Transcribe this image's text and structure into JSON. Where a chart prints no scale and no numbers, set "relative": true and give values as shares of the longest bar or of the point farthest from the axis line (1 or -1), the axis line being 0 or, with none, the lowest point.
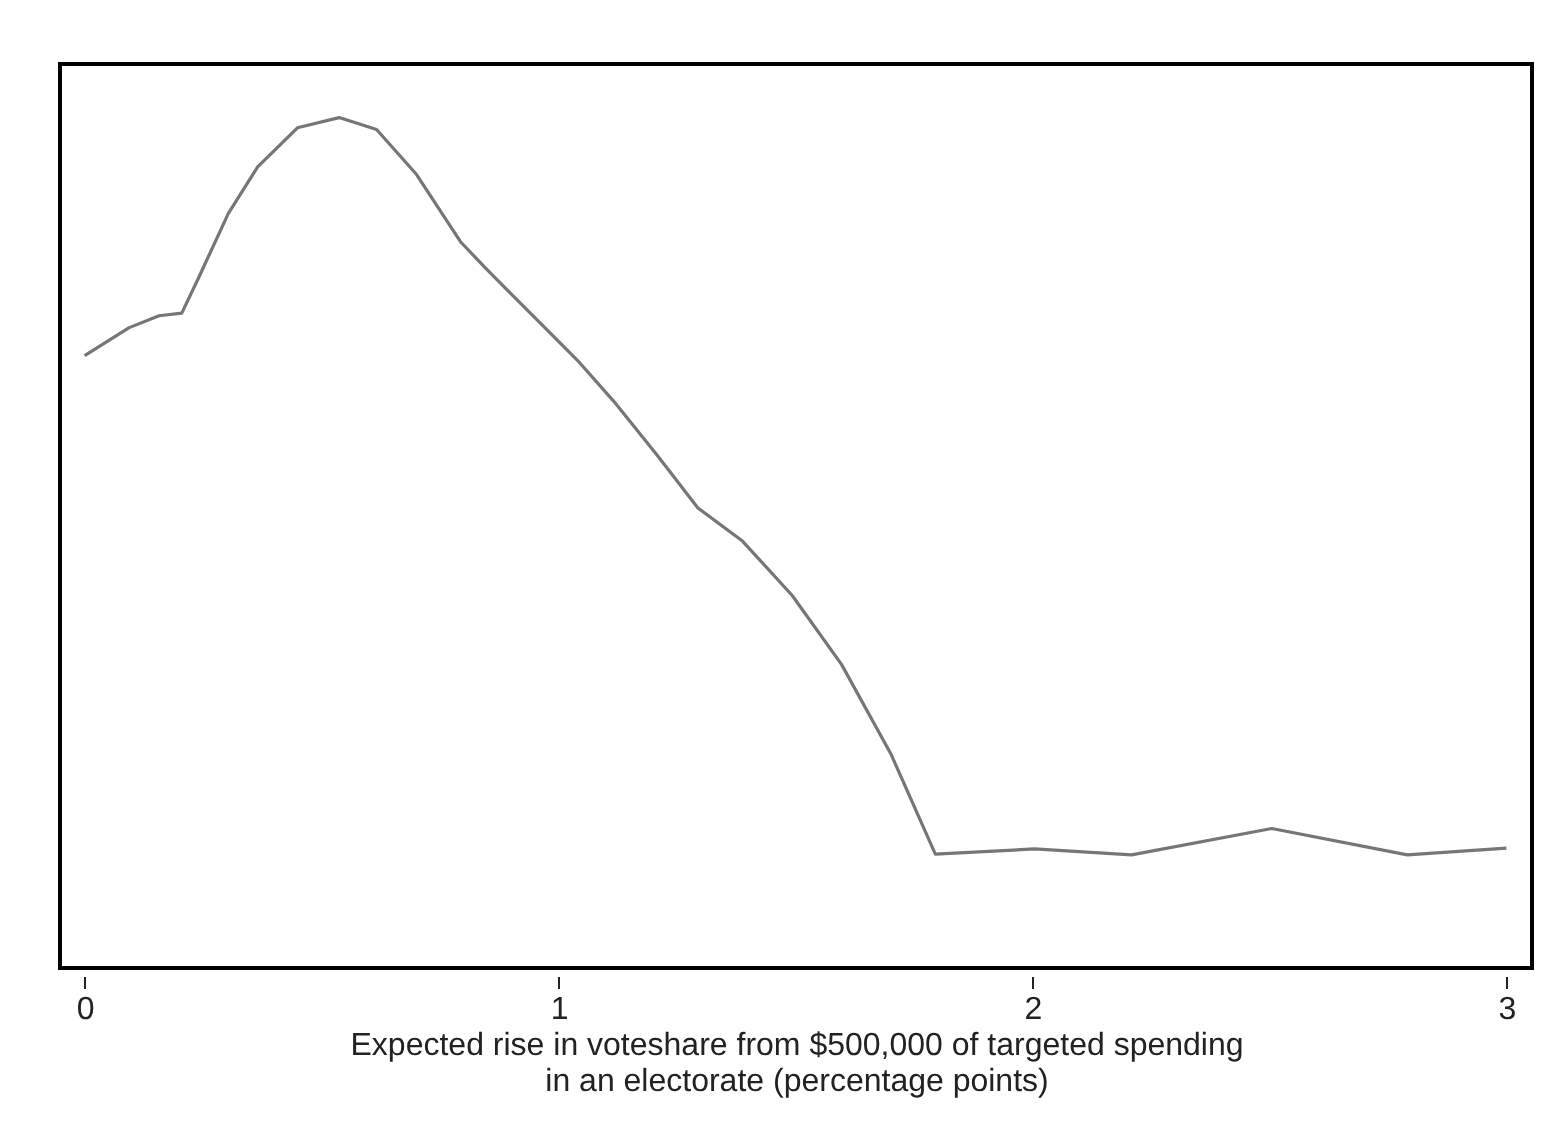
{
  "chart_data": {
    "type": "line",
    "relative": true,
    "color": "#767676",
    "xlabel": "Expected rise in voteshare from $500,000 of targeted spending\nin an electorate (percentage points)",
    "x": [
      0,
      0.094,
      0.157,
      0.205,
      0.24,
      0.303,
      0.365,
      0.449,
      0.537,
      0.616,
      0.699,
      0.793,
      0.846,
      0.894,
      0.971,
      1.044,
      1.117,
      1.211,
      1.294,
      1.388,
      1.493,
      1.597,
      1.701,
      1.795,
      2.004,
      2.209,
      2.505,
      2.791,
      3.0
    ],
    "values": [
      0.72,
      0.753,
      0.767,
      0.77,
      0.811,
      0.887,
      0.942,
      0.988,
      1,
      0.986,
      0.934,
      0.854,
      0.823,
      0.796,
      0.753,
      0.712,
      0.666,
      0.601,
      0.541,
      0.502,
      0.438,
      0.357,
      0.252,
      0.134,
      0.14,
      0.133,
      0.164,
      0.133,
      0.141
    ],
    "xlim": [
      -0.052,
      3.054
    ],
    "xticks": [
      0,
      1,
      2,
      3
    ],
    "grid": false,
    "marker": "none",
    "line_style": "solid"
  }
}
